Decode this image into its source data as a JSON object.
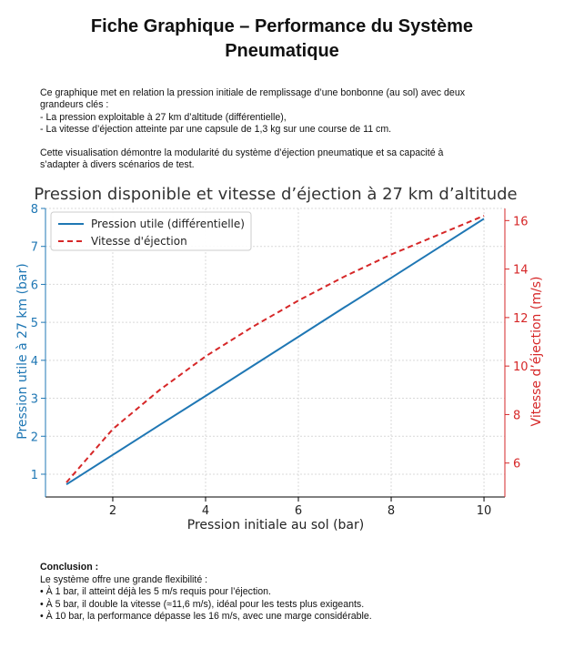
{
  "document": {
    "title_line1": "Fiche Graphique – Performance du Système",
    "title_line2": "Pneumatique",
    "intro": [
      "Ce graphique met en relation la pression initiale de remplissage d’une bonbonne (au sol) avec deux",
      "grandeurs clés :",
      "- La pression exploitable à 27 km d’altitude (différentielle),",
      "- La vitesse d’éjection atteinte par une capsule de 1,3 kg sur une course de 11 cm."
    ],
    "intro2": [
      "Cette visualisation démontre la modularité du système d’éjection pneumatique et sa capacité à",
      "s’adapter à divers scénarios de test."
    ]
  },
  "chart_data": {
    "type": "line",
    "title": "Pression disponible et vitesse d’éjection à 27 km d’altitude",
    "xlabel": "Pression initiale au sol (bar)",
    "ylabel_left": "Pression utile à 27 km (bar)",
    "ylabel_right": "Vitesse d’éjection (m/s)",
    "xlim": [
      0.55,
      10.45
    ],
    "ylim_left": [
      0.4,
      8.0
    ],
    "ylim_right": [
      4.6,
      16.5
    ],
    "xticks": [
      2,
      4,
      6,
      8,
      10
    ],
    "yticks_left": [
      1,
      2,
      3,
      4,
      5,
      6,
      7,
      8
    ],
    "yticks_right": [
      6,
      8,
      10,
      12,
      14,
      16
    ],
    "grid": true,
    "legend_position": "top-left",
    "series": [
      {
        "name": "Pression utile (différentielle)",
        "axis": "left",
        "style": "solid",
        "color": "#1f77b4",
        "x": [
          1,
          2,
          3,
          4,
          5,
          6,
          7,
          8,
          9,
          10
        ],
        "y": [
          0.73,
          1.51,
          2.29,
          3.06,
          3.84,
          4.62,
          5.4,
          6.17,
          6.95,
          7.73
        ]
      },
      {
        "name": "Vitesse d'éjection",
        "axis": "right",
        "style": "dashed",
        "color": "#d62728",
        "x": [
          1,
          2,
          3,
          4,
          5,
          6,
          7,
          8,
          9,
          10
        ],
        "y": [
          5.2,
          7.4,
          9.0,
          10.4,
          11.6,
          12.7,
          13.7,
          14.6,
          15.4,
          16.2
        ]
      }
    ]
  },
  "conclusion": {
    "heading": "Conclusion :",
    "lead": "Le système offre une grande flexibilité :",
    "bullets": [
      "• À 1 bar, il atteint déjà les 5 m/s requis pour l’éjection.",
      "• À 5 bar, il double la vitesse (≈11,6 m/s), idéal pour les tests plus exigeants.",
      "• À 10 bar, la performance dépasse les 16 m/s, avec une marge considérable."
    ]
  }
}
